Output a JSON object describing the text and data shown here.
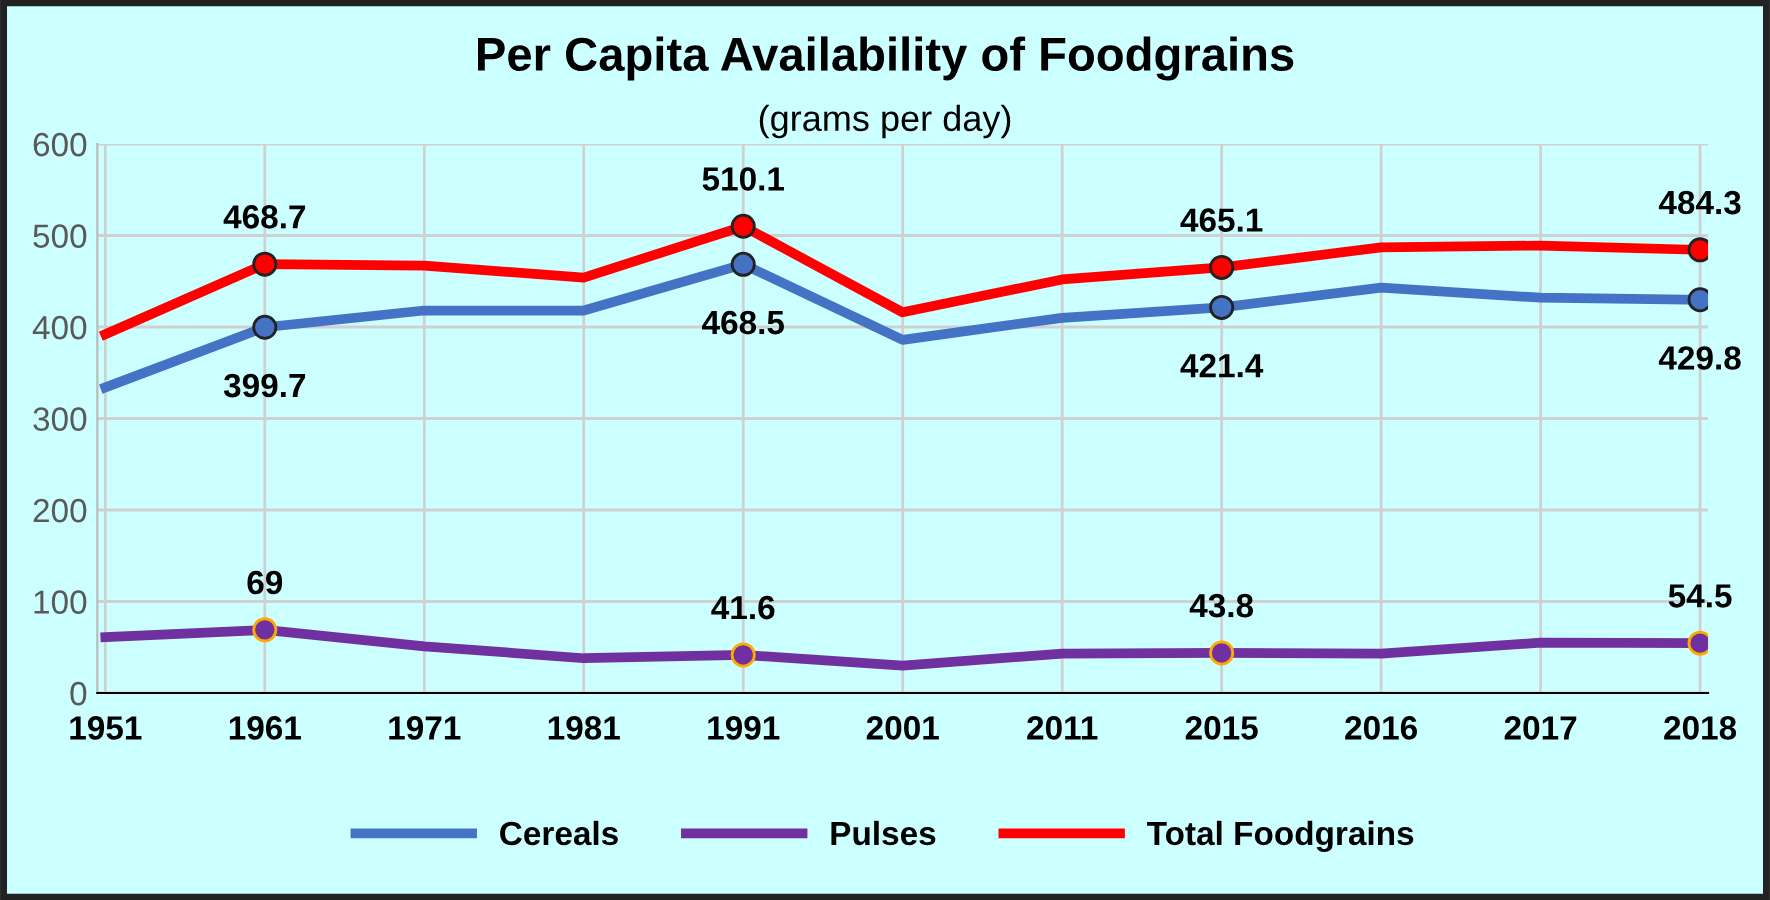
{
  "chart_data": {
    "type": "line",
    "title": "Per Capita Availability of Foodgrains",
    "subtitle": "(grams per day)",
    "categories": [
      "1951",
      "1961",
      "1971",
      "1981",
      "1991",
      "2001",
      "2011",
      "2015",
      "2016",
      "2017",
      "2018"
    ],
    "series": [
      {
        "name": "Cereals",
        "color": "#4472c4",
        "values": [
          334,
          399.7,
          418,
          418,
          468.5,
          386,
          410,
          421.4,
          443,
          432,
          429.8
        ],
        "value_labels": [
          null,
          "399.7",
          null,
          null,
          "468.5",
          null,
          null,
          "421.4",
          null,
          null,
          "429.8"
        ]
      },
      {
        "name": "Pulses",
        "color": "#7030a0",
        "values": [
          61,
          69,
          51,
          38,
          41.6,
          30,
          43,
          43.8,
          43,
          55,
          54.5
        ],
        "value_labels": [
          null,
          "69",
          null,
          null,
          "41.6",
          null,
          null,
          "43.8",
          null,
          null,
          "54.5"
        ]
      },
      {
        "name": "Total Foodgrains",
        "color": "#ff0000",
        "values": [
          392,
          468.7,
          467,
          454,
          510.1,
          416,
          452,
          465.1,
          487,
          489,
          484.3
        ],
        "value_labels": [
          null,
          "468.7",
          null,
          null,
          "510.1",
          null,
          null,
          "465.1",
          null,
          null,
          "484.3"
        ]
      }
    ],
    "ylim": [
      0,
      600
    ],
    "yticks": [
      0,
      100,
      200,
      300,
      400,
      500,
      600
    ],
    "grid": true,
    "legend": "bottom",
    "line_style": "solid"
  }
}
